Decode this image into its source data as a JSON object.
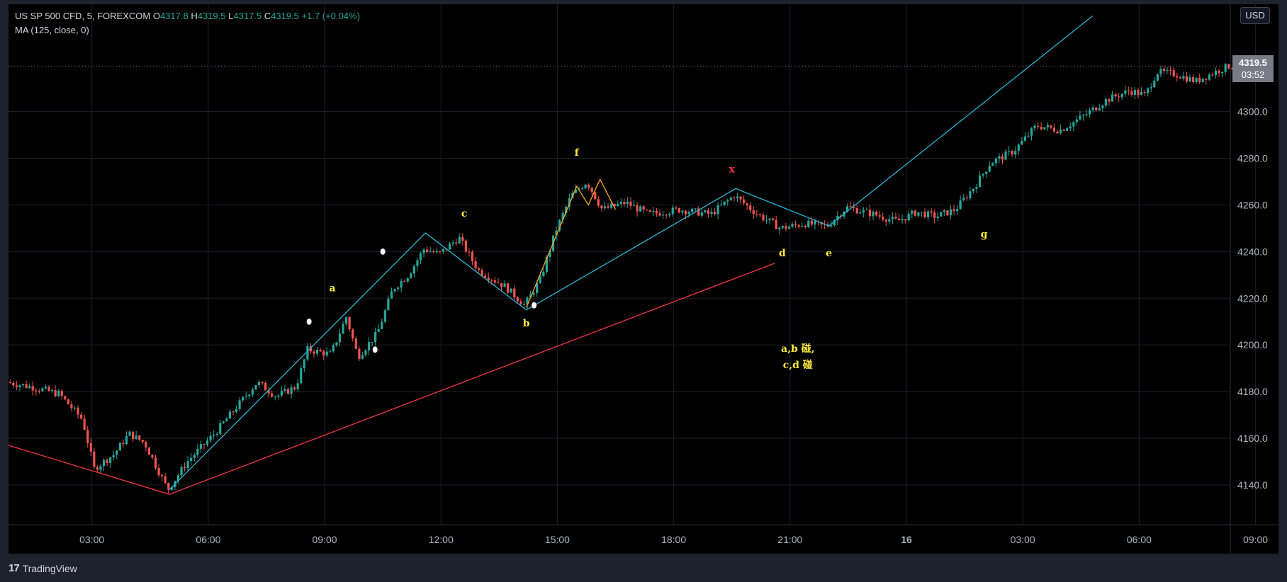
{
  "legend": {
    "symbol": "US SP 500 CFD, 5, FOREXCOM",
    "o_label": "O",
    "o": "4317.8",
    "h_label": "H",
    "h": "4319.5",
    "l_label": "L",
    "l": "4317.5",
    "c_label": "C",
    "c": "4319.5",
    "change": "+1.7 (+0.04%)",
    "indicator": "MA (125, close, 0)"
  },
  "currency_button": "USD",
  "price_tag": {
    "price": "4319.5",
    "countdown": "03:52"
  },
  "footer": {
    "brand": "TradingView",
    "logo_mark": "17"
  },
  "colors": {
    "background": "#000000",
    "grid": "#1c1f26",
    "up": "#26a69a",
    "down": "#ef5350",
    "cyan_lines": "#29b6d6",
    "red_lines": "#f23645",
    "labels": "#ffeb3b",
    "axis_text": "#b2b5be"
  },
  "chart_data": {
    "type": "candlestick",
    "x_axis_ticks": [
      "03:00",
      "06:00",
      "09:00",
      "12:00",
      "15:00",
      "18:00",
      "21:00",
      "16",
      "03:00",
      "06:00",
      "09:00"
    ],
    "y_axis_ticks": [
      4140.0,
      4160.0,
      4180.0,
      4200.0,
      4220.0,
      4240.0,
      4260.0,
      4280.0,
      4300.0
    ],
    "y_axis_tick_labels": [
      "4140.0",
      "4160.0",
      "4180.0",
      "4200.0",
      "4220.0",
      "4240.0",
      "4260.0",
      "4280.0",
      "4300.0"
    ],
    "ylim": [
      4123,
      4346
    ],
    "time_range_hours": [
      0.85,
      32.35
    ],
    "grid": true,
    "current_price": 4319.5,
    "price_path": [
      [
        0.85,
        4184
      ],
      [
        1.5,
        4182
      ],
      [
        2.2,
        4179
      ],
      [
        2.8,
        4168
      ],
      [
        3.1,
        4147
      ],
      [
        3.6,
        4153
      ],
      [
        4.0,
        4162
      ],
      [
        4.4,
        4158
      ],
      [
        5.0,
        4138
      ],
      [
        5.5,
        4150
      ],
      [
        6.2,
        4162
      ],
      [
        6.9,
        4176
      ],
      [
        7.3,
        4184
      ],
      [
        7.8,
        4178
      ],
      [
        8.3,
        4182
      ],
      [
        8.6,
        4198
      ],
      [
        9.2,
        4196
      ],
      [
        9.6,
        4212
      ],
      [
        9.9,
        4195
      ],
      [
        10.4,
        4205
      ],
      [
        10.8,
        4224
      ],
      [
        11.2,
        4230
      ],
      [
        11.6,
        4241
      ],
      [
        12.0,
        4239
      ],
      [
        12.5,
        4246
      ],
      [
        13.0,
        4232
      ],
      [
        13.7,
        4225
      ],
      [
        14.2,
        4217
      ],
      [
        14.6,
        4228
      ],
      [
        15.0,
        4249
      ],
      [
        15.4,
        4264
      ],
      [
        15.8,
        4270
      ],
      [
        16.2,
        4258
      ],
      [
        16.8,
        4261
      ],
      [
        17.4,
        4256
      ],
      [
        18.2,
        4258
      ],
      [
        19.0,
        4256
      ],
      [
        19.6,
        4264
      ],
      [
        20.2,
        4256
      ],
      [
        20.8,
        4250
      ],
      [
        21.4,
        4252
      ],
      [
        22.0,
        4251
      ],
      [
        22.5,
        4259
      ],
      [
        23.2,
        4256
      ],
      [
        23.8,
        4253
      ],
      [
        24.3,
        4257
      ],
      [
        24.8,
        4255
      ],
      [
        25.3,
        4258
      ],
      [
        25.8,
        4268
      ],
      [
        26.2,
        4278
      ],
      [
        26.8,
        4283
      ],
      [
        27.4,
        4294
      ],
      [
        28.0,
        4292
      ],
      [
        28.6,
        4298
      ],
      [
        29.2,
        4305
      ],
      [
        29.8,
        4309
      ],
      [
        30.2,
        4307
      ],
      [
        30.5,
        4317
      ],
      [
        31.0,
        4316
      ],
      [
        31.5,
        4313
      ],
      [
        32.0,
        4317
      ],
      [
        32.35,
        4319.5
      ]
    ],
    "annotations": [
      {
        "text": "a",
        "t": 9.2,
        "price": 4223,
        "color": "#ffeb3b"
      },
      {
        "text": "b",
        "t": 14.2,
        "price": 4208,
        "color": "#ffeb3b"
      },
      {
        "text": "c",
        "t": 12.6,
        "price": 4255,
        "color": "#ffeb3b"
      },
      {
        "text": "f",
        "t": 15.5,
        "price": 4281,
        "color": "#ffeb3b"
      },
      {
        "text": "x",
        "t": 19.5,
        "price": 4274,
        "color": "#f23645"
      },
      {
        "text": "d",
        "t": 20.8,
        "price": 4238,
        "color": "#ffeb3b"
      },
      {
        "text": "e",
        "t": 22.0,
        "price": 4238,
        "color": "#ffeb3b"
      },
      {
        "text": "g",
        "t": 26.0,
        "price": 4246,
        "color": "#ffeb3b"
      },
      {
        "text": "a,b 碰,",
        "t": 21.2,
        "price": 4197,
        "color": "#ffeb3b"
      },
      {
        "text": "c,d 碰",
        "t": 21.2,
        "price": 4190,
        "color": "#ffeb3b"
      }
    ],
    "trend_lines": [
      {
        "color": "#29b6d6",
        "points": [
          [
            5.0,
            4138
          ],
          [
            11.6,
            4248
          ],
          [
            14.2,
            4215
          ],
          [
            19.6,
            4267
          ],
          [
            22.0,
            4251
          ],
          [
            28.8,
            4341
          ]
        ]
      },
      {
        "color": "#f23645",
        "points": [
          [
            0.85,
            4157
          ],
          [
            5.0,
            4136
          ],
          [
            20.6,
            4235
          ]
        ]
      },
      {
        "color": "#f5a623",
        "points": [
          [
            14.2,
            4216
          ],
          [
            15.5,
            4268
          ],
          [
            15.8,
            4260
          ],
          [
            16.1,
            4271
          ],
          [
            16.5,
            4258
          ]
        ]
      }
    ]
  }
}
